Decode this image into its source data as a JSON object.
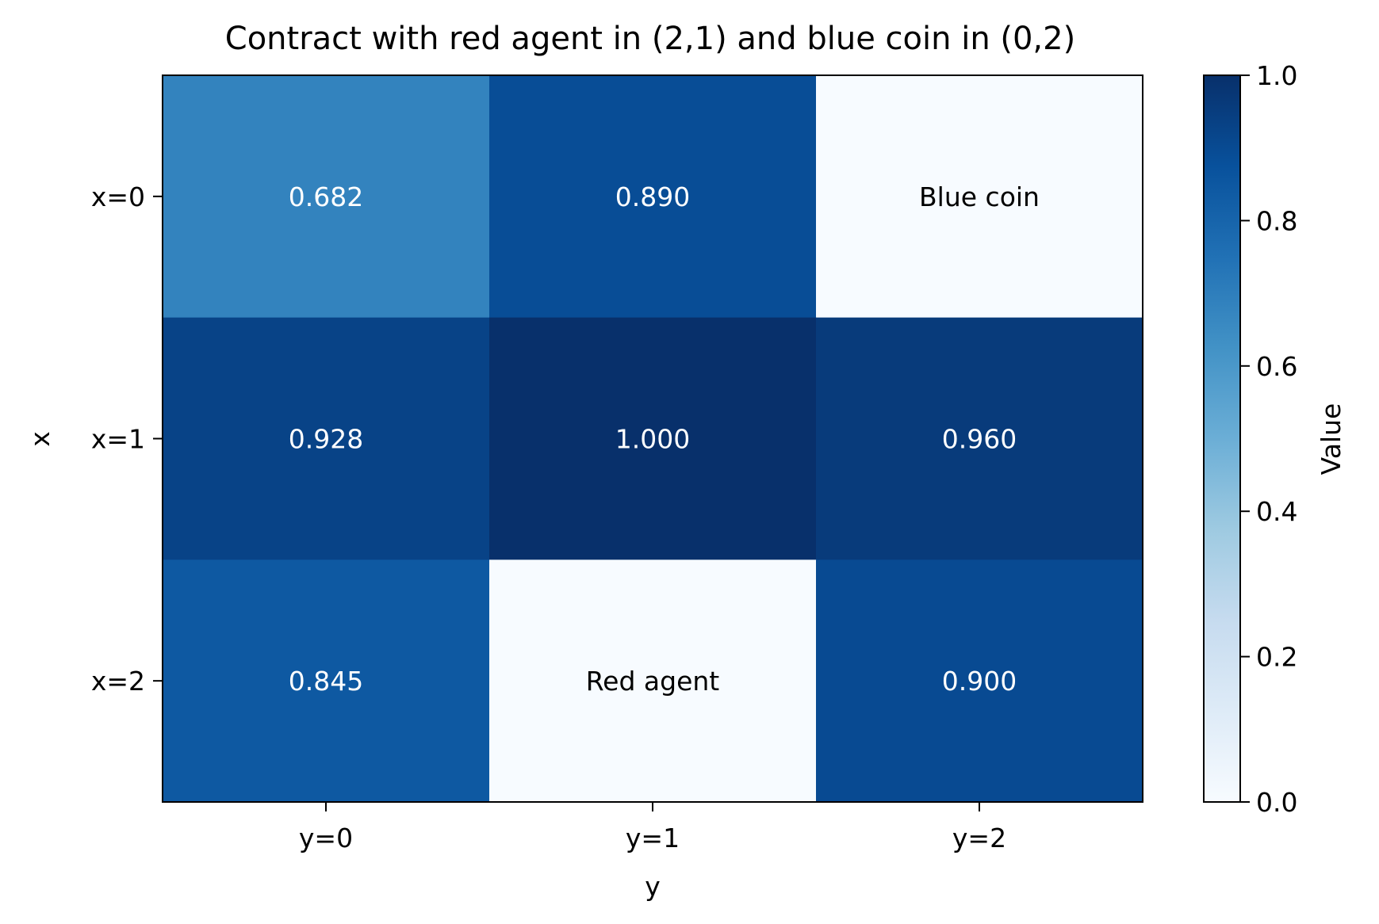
{
  "chart_data": {
    "type": "heatmap",
    "title": "Contract with red agent in (2,1) and blue coin in (0,2)",
    "xlabel": "y",
    "ylabel": "x",
    "x_categories": [
      "y=0",
      "y=1",
      "y=2"
    ],
    "y_categories": [
      "x=0",
      "x=1",
      "x=2"
    ],
    "cells": [
      {
        "row": 0,
        "col": 0,
        "value": 0.682,
        "label": "0.682"
      },
      {
        "row": 0,
        "col": 1,
        "value": 0.89,
        "label": "0.890"
      },
      {
        "row": 0,
        "col": 2,
        "value": 0.0,
        "label": "Blue coin"
      },
      {
        "row": 1,
        "col": 0,
        "value": 0.928,
        "label": "0.928"
      },
      {
        "row": 1,
        "col": 1,
        "value": 1.0,
        "label": "1.000"
      },
      {
        "row": 1,
        "col": 2,
        "value": 0.96,
        "label": "0.960"
      },
      {
        "row": 2,
        "col": 0,
        "value": 0.845,
        "label": "0.845"
      },
      {
        "row": 2,
        "col": 1,
        "value": 0.0,
        "label": "Red agent"
      },
      {
        "row": 2,
        "col": 2,
        "value": 0.9,
        "label": "0.900"
      }
    ],
    "colorbar": {
      "label": "Value",
      "range": [
        0.0,
        1.0
      ],
      "ticks": [
        "0.0",
        "0.2",
        "0.4",
        "0.6",
        "0.8",
        "1.0"
      ],
      "colormap": "Blues"
    },
    "colors": {
      "blues_stops": [
        "#f7fbff",
        "#deebf7",
        "#c6dbef",
        "#9ecae1",
        "#6baed6",
        "#4292c6",
        "#2171b5",
        "#08519c",
        "#08306b"
      ]
    }
  }
}
